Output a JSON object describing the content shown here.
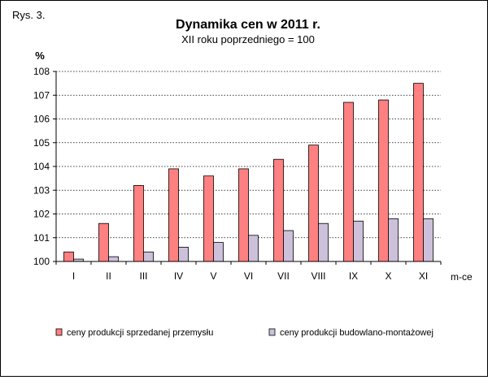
{
  "figure_label": "Rys. 3.",
  "chart_data": {
    "type": "bar",
    "title": "Dynamika cen w 2011 r.",
    "subtitle": "XII roku poprzedniego = 100",
    "ylabel": "%",
    "xlabel": "m-ce",
    "ylim": [
      100,
      108
    ],
    "yticks": [
      100,
      101,
      102,
      103,
      104,
      105,
      106,
      107,
      108
    ],
    "grid": "horizontal-dotted",
    "legend_position": "bottom",
    "categories": [
      "I",
      "II",
      "III",
      "IV",
      "V",
      "VI",
      "VII",
      "VIII",
      "IX",
      "X",
      "XI"
    ],
    "series": [
      {
        "name": "ceny produkcji sprzedanej przemysłu",
        "color": "#ff8080",
        "values": [
          100.4,
          101.6,
          103.2,
          103.9,
          103.6,
          103.9,
          104.3,
          104.9,
          106.7,
          106.8,
          107.5
        ]
      },
      {
        "name": "ceny produkcji budowlano-montażowej",
        "color": "#ccc0da",
        "values": [
          100.1,
          100.2,
          100.4,
          100.6,
          100.8,
          101.1,
          101.3,
          101.6,
          101.7,
          101.8,
          101.8
        ]
      }
    ]
  }
}
